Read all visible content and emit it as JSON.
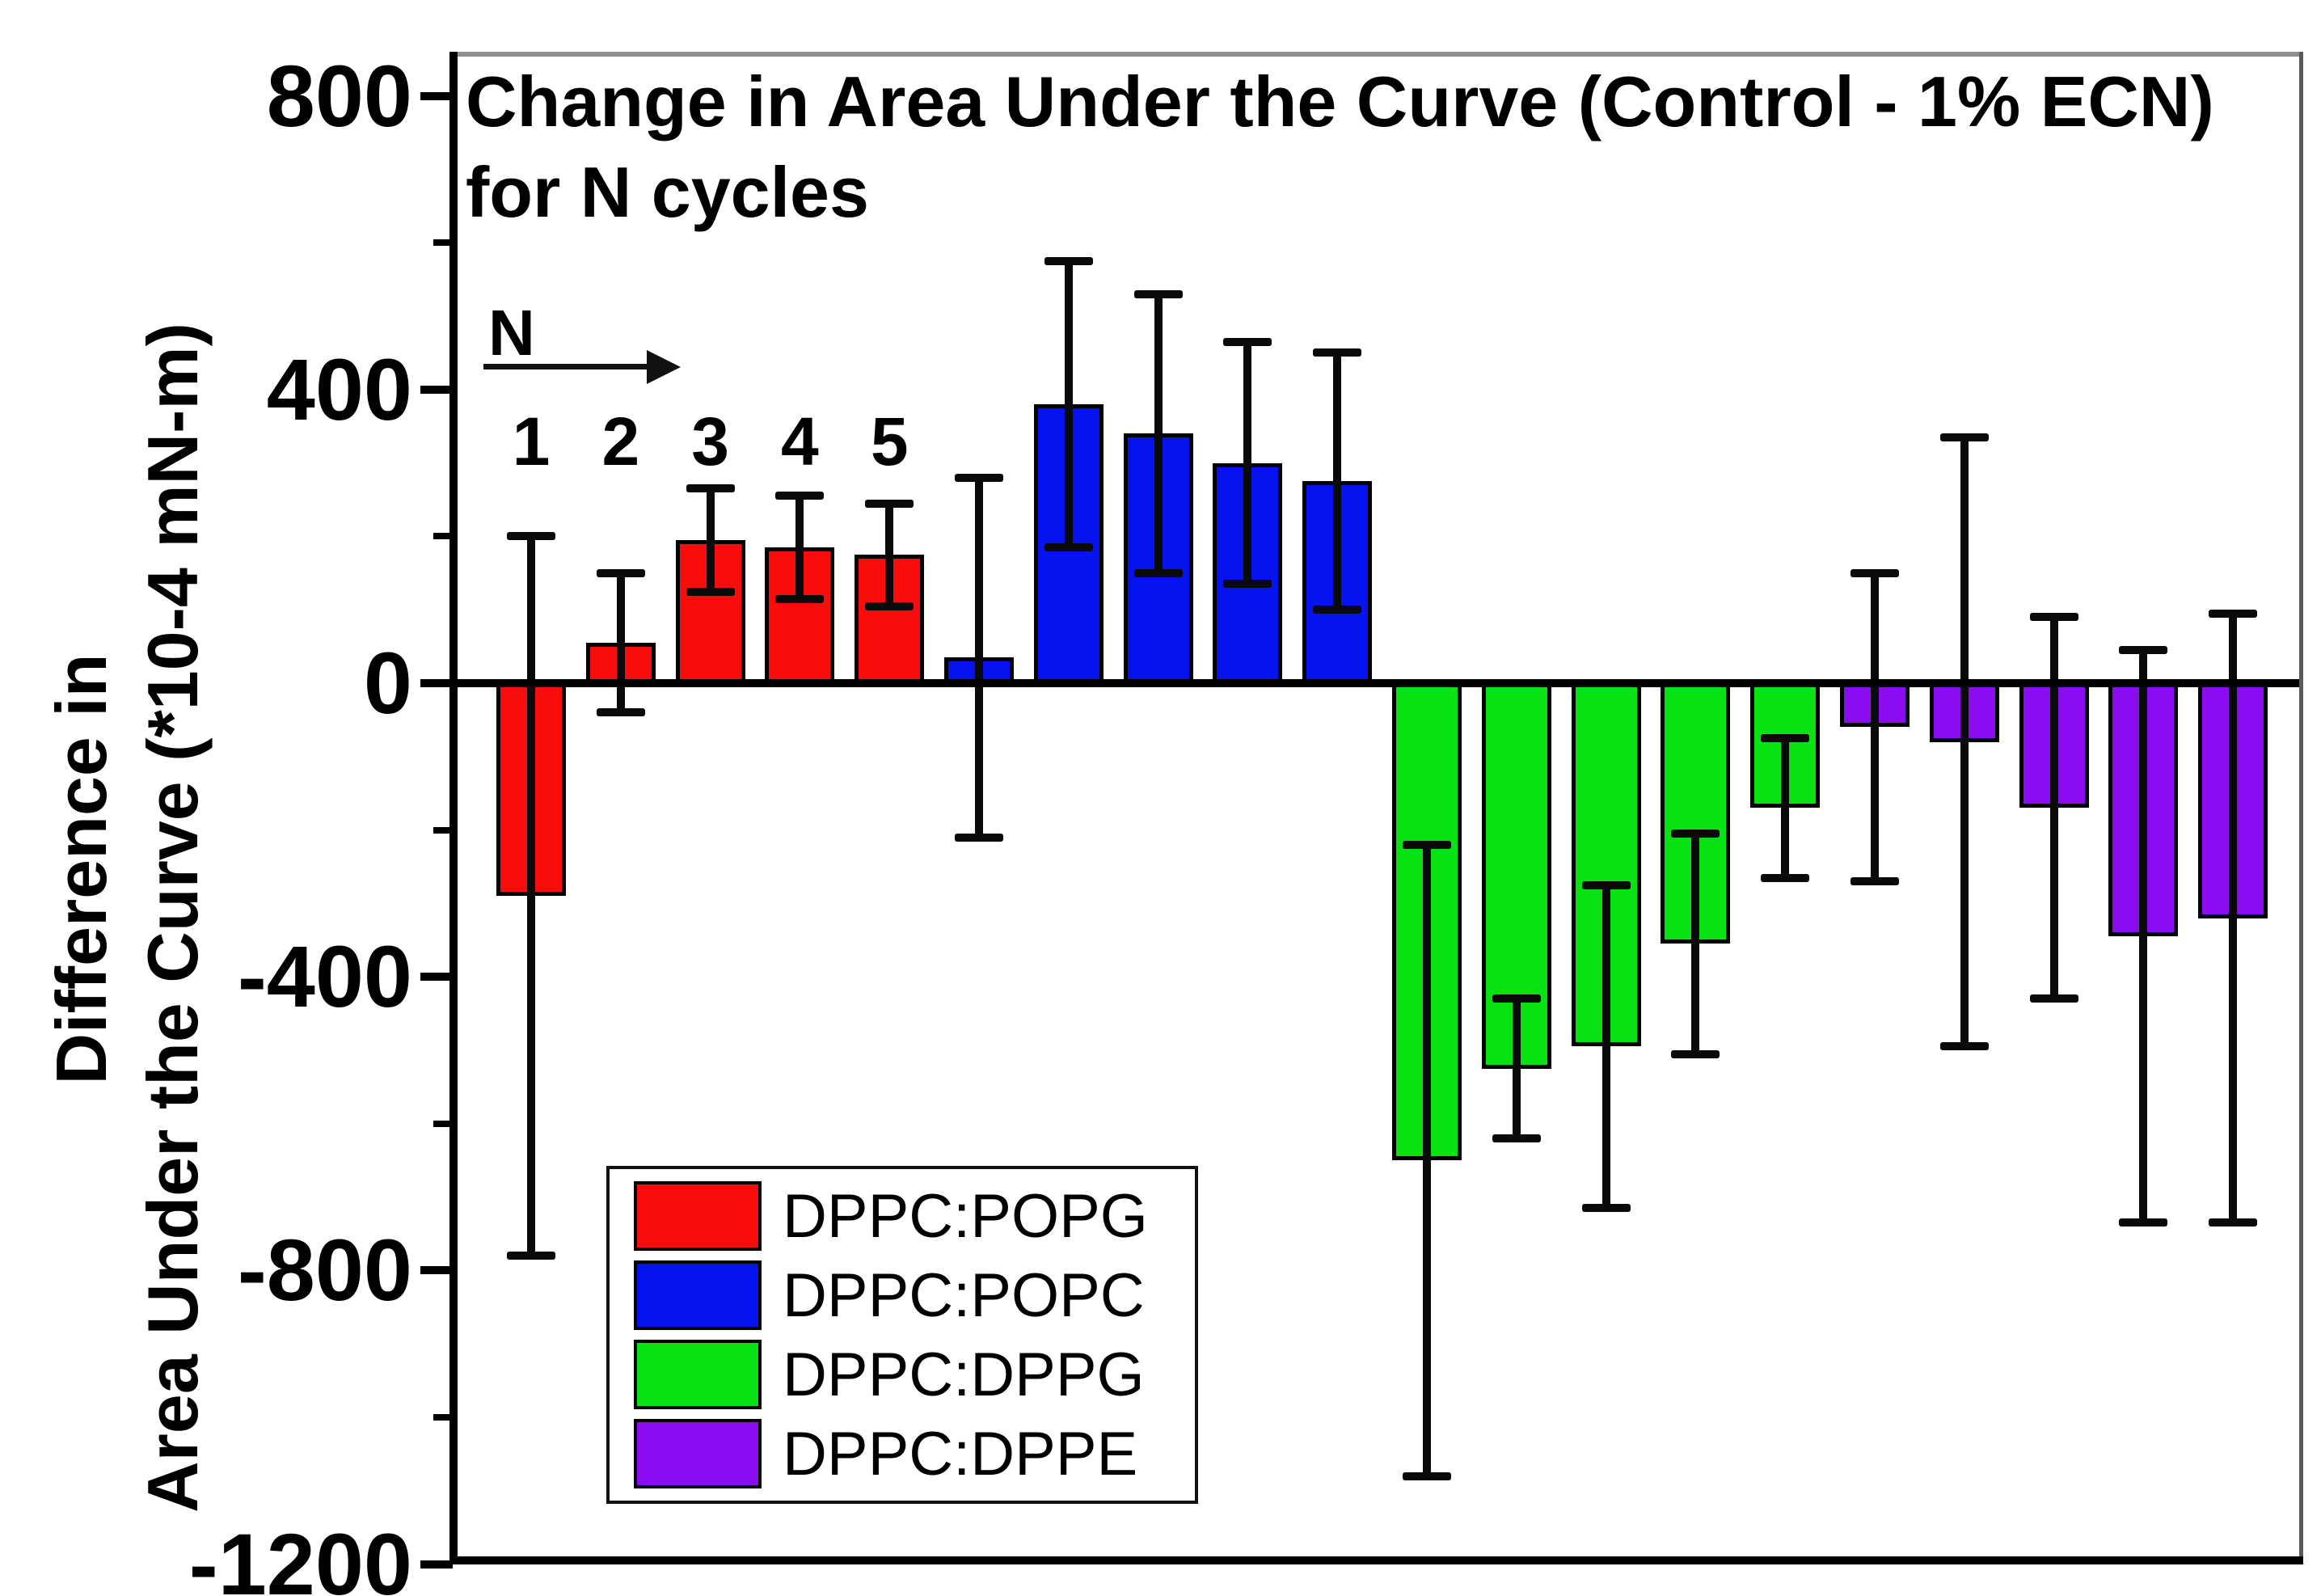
{
  "chart_data": {
    "type": "bar",
    "title_line1": "Change in Area Under the Curve (Control - 1% ECN)",
    "title_line2": "for N cycles",
    "ylabel_line1": "Difference in",
    "ylabel_line2": "Area Under the Curve (*10-4 mN-m)",
    "yticks": [
      800,
      400,
      0,
      -400,
      -800,
      -1200
    ],
    "minor_yticks": [
      600,
      200,
      -200,
      -600,
      -1000
    ],
    "ylim": [
      -1200,
      855
    ],
    "grid": false,
    "legend_position": "inside-bottom-left",
    "n_annotation": {
      "label": "N",
      "arrow": "right",
      "cycle_labels": [
        "1",
        "2",
        "3",
        "4",
        "5"
      ]
    },
    "categories": [
      1,
      2,
      3,
      4,
      5
    ],
    "series": [
      {
        "name": "DPPC:POPG",
        "color": "#f80c0c",
        "values": [
          -290,
          55,
          195,
          185,
          175
        ],
        "errors": [
          490,
          95,
          70,
          70,
          70
        ]
      },
      {
        "name": "DPPC:POPC",
        "color": "#0713ee",
        "values": [
          35,
          380,
          340,
          300,
          275
        ],
        "errors": [
          245,
          195,
          190,
          165,
          175
        ]
      },
      {
        "name": "DPPC:DPPG",
        "color": "#09e212",
        "values": [
          -650,
          -525,
          -495,
          -355,
          -170
        ],
        "errors": [
          430,
          95,
          220,
          150,
          95
        ]
      },
      {
        "name": "DPPC:DPPE",
        "color": "#8a0cf0",
        "values": [
          -60,
          -80,
          -170,
          -345,
          -320
        ],
        "errors": [
          210,
          415,
          260,
          390,
          415
        ]
      }
    ]
  }
}
